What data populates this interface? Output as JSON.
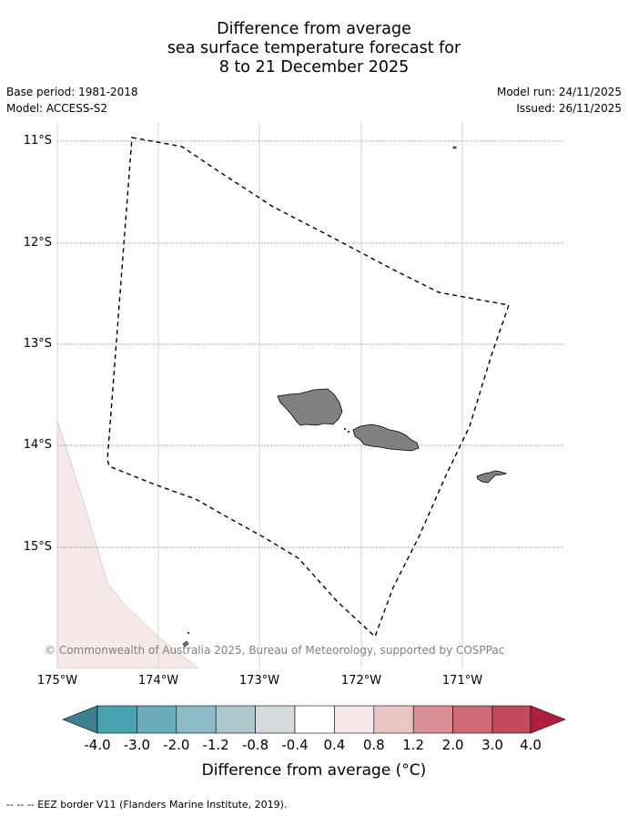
{
  "title": {
    "line1": "Difference from average",
    "line2": "sea surface temperature forecast for",
    "line3": "8 to 21 December 2025"
  },
  "meta": {
    "base_period": "Base period: 1981-2018",
    "model": "Model: ACCESS-S2",
    "model_run": "Model run: 24/11/2025",
    "issued": "Issued: 26/11/2025"
  },
  "map": {
    "lat_labels": [
      "11°S",
      "12°S",
      "13°S",
      "14°S",
      "15°S"
    ],
    "lon_labels": [
      "175°W",
      "174°W",
      "173°W",
      "172°W",
      "171°W"
    ],
    "land_color": "#808080",
    "anomaly_patch_color": "#f5e9e9",
    "eez_line_color": "#000000",
    "copyright": "© Commonwealth of Australia 2025, Bureau of Meteorology, supported by COSPPac"
  },
  "colorbar": {
    "tick_labels": [
      "-4.0",
      "-3.0",
      "-2.0",
      "-1.2",
      "-0.8",
      "-0.4",
      "0.4",
      "0.8",
      "1.2",
      "2.0",
      "3.0",
      "4.0"
    ],
    "colors": [
      "#3b808f",
      "#48a2af",
      "#6aacbb",
      "#8cbac6",
      "#abc7cc",
      "#d5dadd",
      "#ffffff",
      "#f5e9e9",
      "#e9c6c4",
      "#d98f96",
      "#cf6a75",
      "#c24a5a",
      "#b01f3d"
    ],
    "label": "Difference from average (°C)"
  },
  "footer": {
    "legend": "-- -- -- EEZ border V11 (Flanders Marine Institute, 2019)."
  }
}
